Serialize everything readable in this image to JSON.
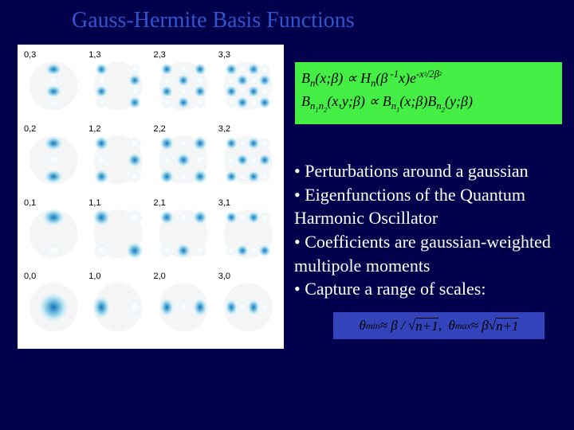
{
  "title": "Gauss-Hermite Basis Functions",
  "colors": {
    "bg": "#00004d",
    "title": "#3355cc",
    "eqbox_bg": "#44ee44",
    "scale_bg": "#3344bb",
    "cell_bg": "#ffffff",
    "lobe_pos": "#a8ddf0",
    "lobe_pos_core": "#1177bb",
    "lobe_neg": "#ffffff",
    "text_white": "#ffffff"
  },
  "grid": {
    "rows": 4,
    "cols": 4,
    "cell_size": 80,
    "cells": [
      {
        "label": "0,3",
        "nx": 0,
        "ny": 3
      },
      {
        "label": "1,3",
        "nx": 1,
        "ny": 3
      },
      {
        "label": "2,3",
        "nx": 2,
        "ny": 3
      },
      {
        "label": "3,3",
        "nx": 3,
        "ny": 3
      },
      {
        "label": "0,2",
        "nx": 0,
        "ny": 2
      },
      {
        "label": "1,2",
        "nx": 1,
        "ny": 2
      },
      {
        "label": "2,2",
        "nx": 2,
        "ny": 2
      },
      {
        "label": "3,2",
        "nx": 3,
        "ny": 2
      },
      {
        "label": "0,1",
        "nx": 0,
        "ny": 1
      },
      {
        "label": "1,1",
        "nx": 1,
        "ny": 1
      },
      {
        "label": "2,1",
        "nx": 2,
        "ny": 1
      },
      {
        "label": "3,1",
        "nx": 3,
        "ny": 1
      },
      {
        "label": "0,0",
        "nx": 0,
        "ny": 0
      },
      {
        "label": "1,0",
        "nx": 1,
        "ny": 0
      },
      {
        "label": "2,0",
        "nx": 2,
        "ny": 0
      },
      {
        "label": "3,0",
        "nx": 3,
        "ny": 0
      }
    ]
  },
  "eq1_html": "B<sub>n</sub>(x;β) ∝ H<sub>n</sub>(β<sup>&nbsp;-1</sup>x)e<sup>-x<span style='font-size:0.8em'>²</span>/2β<span style='font-size:0.8em'>²</span></sup>",
  "eq2_html": "B<sub>n<sub>1</sub>n<sub>2</sub></sub>(x,y;β) ∝ B<sub>n<sub>1</sub></sub>(x;β)B<sub>n<sub>2</sub></sub>(y;β)",
  "bullets": [
    "• Perturbations around a gaussian",
    "• Eigenfunctions of the Quantum Harmonic Oscillator",
    "• Coefficients are gaussian-weighted multipole moments",
    "• Capture a range of scales:"
  ],
  "scale_eq_html": "θ<sub>min</sub> ≈ β / √<span style='border-top:1px solid black'>n+1</span>,&nbsp;&nbsp;θ<sub>max</sub> ≈ β√<span style='border-top:1px solid black'>n+1</span>"
}
